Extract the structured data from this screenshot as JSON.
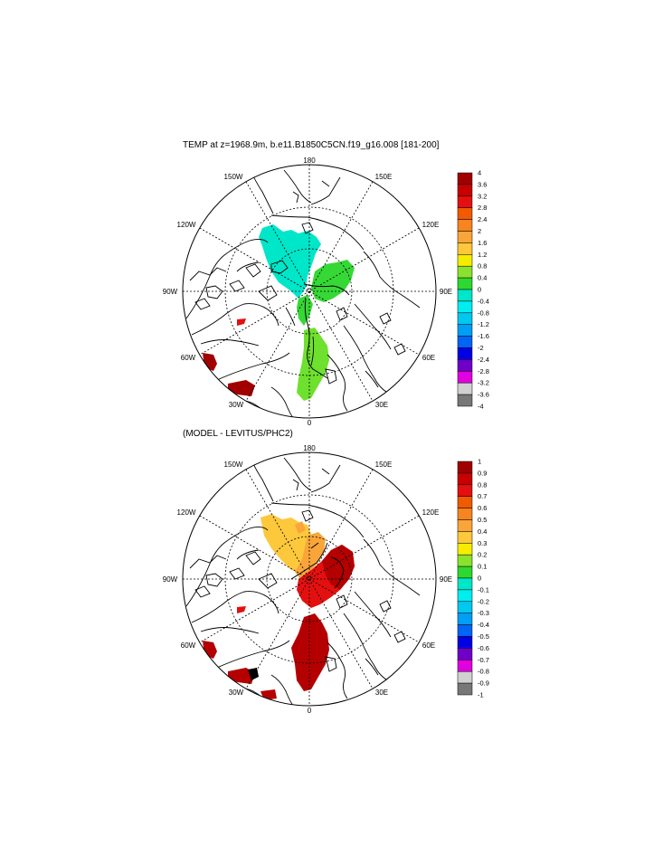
{
  "panels": [
    {
      "title": "TEMP at z=1968.9m, b.e11.B1850C5CN.f19_g16.008 [181-200]",
      "lon_labels": {
        "top": "180",
        "top_left": "150W",
        "top_right": "150E",
        "upper_left": "120W",
        "upper_right": "120E",
        "left": "90W",
        "right": "90E",
        "lower_left": "60W",
        "lower_right": "60E",
        "bottom_left": "30W",
        "bottom_right": "30E",
        "bottom": "0"
      },
      "colorbar": {
        "labels": [
          "4",
          "3.6",
          "3.2",
          "2.8",
          "2.4",
          "2",
          "1.6",
          "1.2",
          "0.8",
          "0.4",
          "0",
          "-0.4",
          "-0.8",
          "-1.2",
          "-1.6",
          "-2",
          "-2.4",
          "-2.8",
          "-3.2",
          "-3.6",
          "-4"
        ],
        "colors": [
          "#a00000",
          "#c80000",
          "#e41010",
          "#f05a00",
          "#f7841e",
          "#f9a53a",
          "#fdc83c",
          "#f5ec00",
          "#8be22e",
          "#2ed82e",
          "#00e6c8",
          "#00eef0",
          "#00c8f0",
          "#009ef5",
          "#0064f5",
          "#0000e6",
          "#6f00c8",
          "#e000e0",
          "#d0d0d0",
          "#777777"
        ]
      },
      "field_colors": {
        "cyan": "#00e6c8",
        "green": "#36d836",
        "lightgreen": "#6ee02e",
        "darkred": "#a00000",
        "red": "#e41010",
        "orange": "#f7841e"
      }
    },
    {
      "title": "(MODEL - LEVITUS/PHC2)",
      "lon_labels": {
        "top": "180",
        "top_left": "150W",
        "top_right": "150E",
        "upper_left": "120W",
        "upper_right": "120E",
        "left": "90W",
        "right": "90E",
        "lower_left": "60W",
        "lower_right": "60E",
        "bottom_left": "30W",
        "bottom_right": "30E",
        "bottom": "0"
      },
      "colorbar": {
        "labels": [
          "1",
          "0.9",
          "0.8",
          "0.7",
          "0.6",
          "0.5",
          "0.4",
          "0.3",
          "0.2",
          "0.1",
          "0",
          "-0.1",
          "-0.2",
          "-0.3",
          "-0.4",
          "-0.5",
          "-0.6",
          "-0.7",
          "-0.8",
          "-0.9",
          "-1"
        ],
        "colors": [
          "#a00000",
          "#c80000",
          "#e41010",
          "#f05a00",
          "#f7841e",
          "#f9a53a",
          "#fdc83c",
          "#f5ec00",
          "#8be22e",
          "#2ed82e",
          "#00e6c8",
          "#00eef0",
          "#00c8f0",
          "#009ef5",
          "#0064f5",
          "#0000e6",
          "#6f00c8",
          "#e000e0",
          "#d0d0d0",
          "#777777"
        ]
      },
      "field_colors": {
        "yellow": "#fdc83c",
        "orange": "#f9a53a",
        "red": "#e41010",
        "darkred": "#b40000",
        "black": "#000000"
      }
    }
  ]
}
